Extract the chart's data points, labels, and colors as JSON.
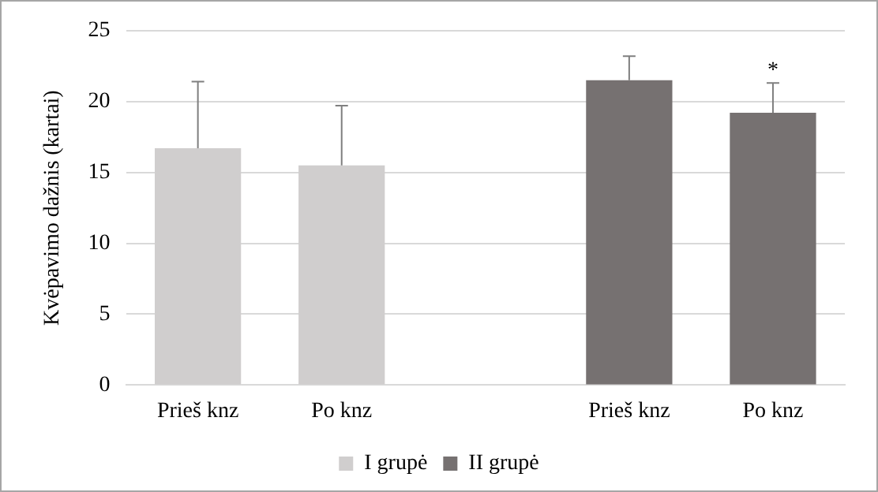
{
  "chart_data": {
    "type": "bar",
    "ylabel": "Kvėpavimo dažnis (kartai)",
    "categories": [
      "Prieš knz",
      "Po knz",
      null,
      "Prieš knz",
      "Po knz"
    ],
    "series": [
      {
        "name": "I grupė",
        "color": "#d0cece",
        "values": [
          16.7,
          15.5,
          null,
          null,
          null
        ],
        "errors": [
          [
            16.7,
            21.4
          ],
          [
            15.5,
            19.7
          ],
          null,
          null,
          null
        ]
      },
      {
        "name": "II grupė",
        "color": "#767171",
        "values": [
          null,
          null,
          null,
          21.5,
          19.2
        ],
        "errors": [
          null,
          null,
          null,
          [
            21.5,
            23.2
          ],
          [
            19.2,
            21.3
          ]
        ]
      }
    ],
    "ylim": [
      0,
      25
    ],
    "yticks": [
      0,
      5,
      10,
      15,
      20,
      25
    ],
    "grid": "y",
    "legend": "bottom",
    "annotations": [
      "*"
    ]
  }
}
